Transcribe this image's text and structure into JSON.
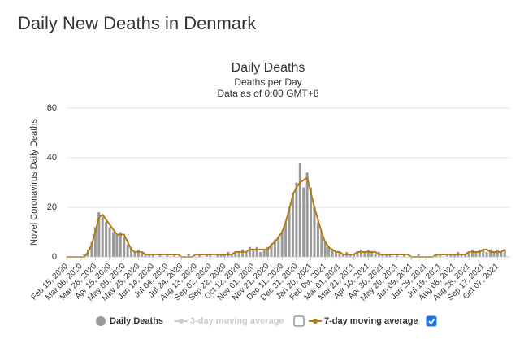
{
  "header": {
    "title": "Daily New Deaths in Denmark"
  },
  "chart_data": {
    "type": "bar",
    "title": "Daily Deaths",
    "subtitle": "Deaths per Day",
    "note": "Data as of 0:00 GMT+8",
    "y_label": "Novel Coronavirus Daily Deaths",
    "ylim": [
      0,
      60
    ],
    "yticks": [
      0,
      20,
      40,
      60
    ],
    "grid": true,
    "categories": [
      "Feb 15, 2020",
      null,
      null,
      null,
      "Mar 06, 2020",
      null,
      null,
      null,
      "Mar 26, 2020",
      null,
      null,
      null,
      "Apr 15, 2020",
      null,
      null,
      null,
      "May 05, 2020",
      null,
      null,
      null,
      "May 25, 2020",
      null,
      null,
      null,
      "Jun 14, 2020",
      null,
      null,
      null,
      "Jul 04, 2020",
      null,
      null,
      null,
      "Jul 24, 2020",
      null,
      null,
      null,
      "Aug 13, 2020",
      null,
      null,
      null,
      "Sep 02, 2020",
      null,
      null,
      null,
      "Sep 22, 2020",
      null,
      null,
      null,
      "Oct 12, 2020",
      null,
      null,
      null,
      "Nov 01, 2020",
      null,
      null,
      null,
      "Nov 21, 2020",
      null,
      null,
      null,
      "Dec 11, 2020",
      null,
      null,
      null,
      "Dec 31, 2020",
      null,
      null,
      null,
      "Jan 20, 2021",
      null,
      null,
      null,
      "Feb 09, 2021",
      null,
      null,
      null,
      "Mar 01, 2021",
      null,
      null,
      null,
      "Mar 21, 2021",
      null,
      null,
      null,
      "Apr 10, 2021",
      null,
      null,
      null,
      "Apr 30, 2021",
      null,
      null,
      null,
      "May 20, 2021",
      null,
      null,
      null,
      "Jun 09, 2021",
      null,
      null,
      null,
      "Jun 29, 2021",
      null,
      null,
      null,
      "Jul 19, 2021",
      null,
      null,
      null,
      "Aug 08, 2021",
      null,
      null,
      null,
      "Aug 28, 2021",
      null,
      null,
      null,
      "Sep 17, 2021",
      null,
      null,
      null,
      "Oct 07, 2021",
      null,
      null
    ],
    "series": [
      {
        "name": "Daily Deaths",
        "color": "#999999",
        "checked": true,
        "values": [
          0,
          0,
          0,
          0,
          0,
          1,
          3,
          6,
          12,
          18,
          16,
          14,
          12,
          10,
          9,
          10,
          8,
          5,
          3,
          2,
          3,
          2,
          1,
          1,
          1,
          0,
          1,
          0,
          1,
          0,
          1,
          0,
          0,
          0,
          1,
          0,
          0,
          1,
          0,
          1,
          1,
          0,
          1,
          1,
          1,
          2,
          1,
          2,
          2,
          3,
          2,
          4,
          3,
          4,
          2,
          3,
          4,
          5,
          7,
          8,
          10,
          14,
          20,
          26,
          30,
          38,
          28,
          34,
          28,
          20,
          14,
          10,
          6,
          4,
          3,
          2,
          2,
          1,
          2,
          1,
          1,
          2,
          3,
          2,
          3,
          2,
          1,
          2,
          1,
          1,
          1,
          0,
          1,
          0,
          1,
          0,
          0,
          0,
          1,
          0,
          0,
          0,
          0,
          1,
          1,
          0,
          1,
          1,
          1,
          2,
          1,
          1,
          2,
          3,
          2,
          3,
          3,
          2,
          3,
          2,
          3,
          2,
          3
        ]
      },
      {
        "name": "7-day moving average",
        "color": "#b07d12",
        "checked": true,
        "values": [
          0,
          0,
          0,
          0,
          0,
          0,
          2,
          5,
          10,
          16,
          17,
          15,
          13,
          11,
          9,
          9,
          9,
          6,
          3,
          2,
          2,
          2,
          1,
          1,
          1,
          1,
          1,
          1,
          1,
          1,
          1,
          1,
          0,
          0,
          0,
          0,
          1,
          1,
          1,
          1,
          1,
          1,
          1,
          1,
          1,
          1,
          1,
          2,
          2,
          2,
          2,
          3,
          3,
          3,
          3,
          3,
          3,
          5,
          6,
          8,
          10,
          14,
          19,
          25,
          28,
          30,
          31,
          32,
          26,
          20,
          15,
          10,
          6,
          4,
          3,
          2,
          2,
          1,
          1,
          1,
          1,
          2,
          2,
          2,
          2,
          2,
          2,
          1,
          1,
          1,
          1,
          1,
          1,
          1,
          1,
          1,
          0,
          0,
          0,
          0,
          0,
          0,
          0,
          1,
          1,
          1,
          1,
          1,
          1,
          1,
          1,
          1,
          2,
          2,
          2,
          2,
          3,
          3,
          2,
          2,
          2,
          2,
          3
        ]
      }
    ],
    "hidden_series": [
      {
        "name": "3-day moving average",
        "color": "#cccccc",
        "checked": false
      }
    ]
  }
}
